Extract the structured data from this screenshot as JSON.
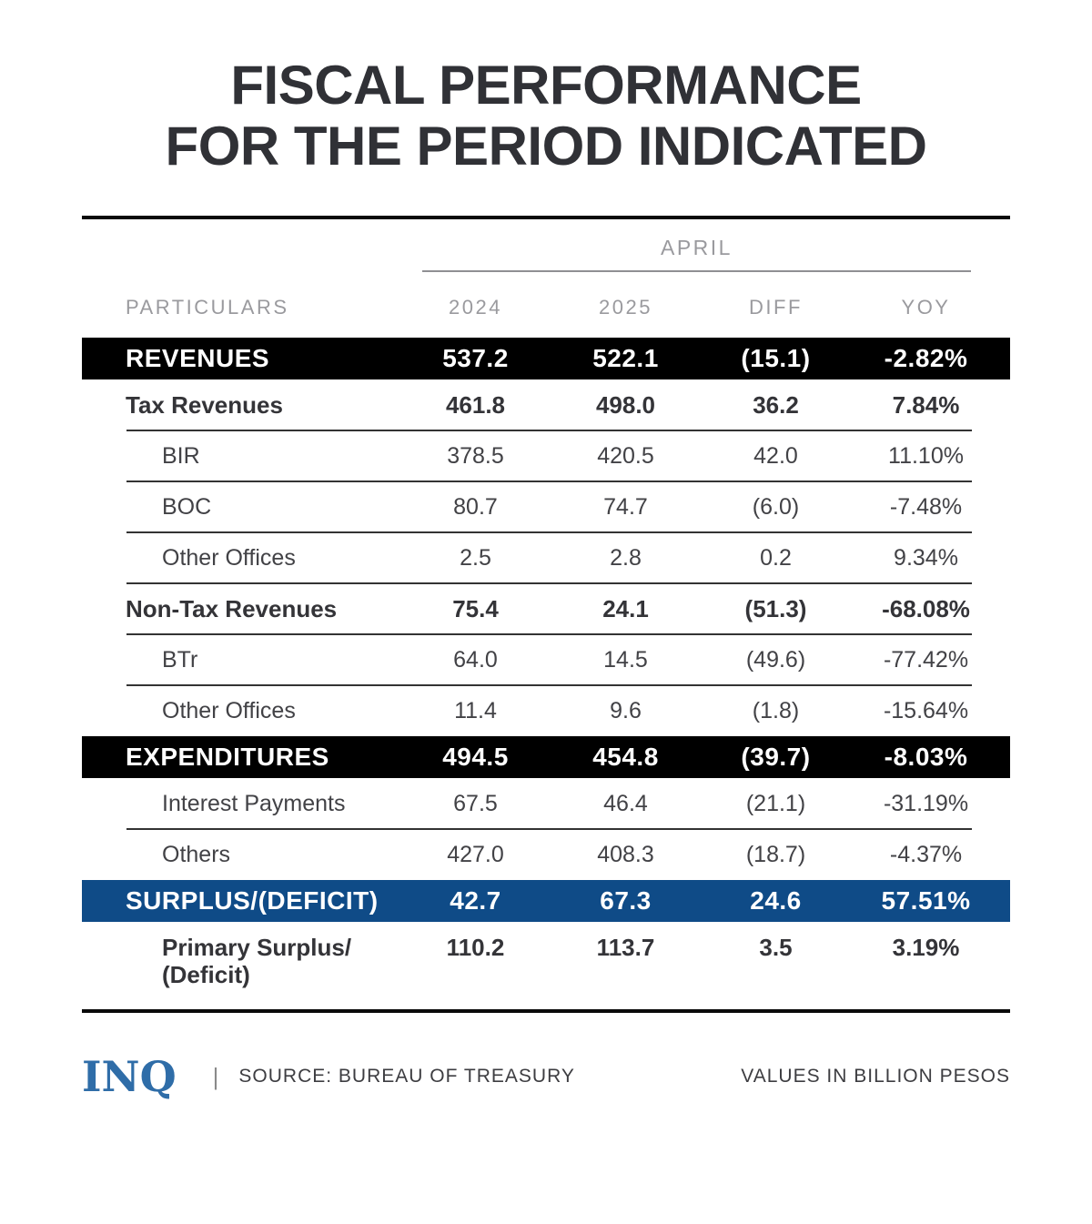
{
  "title": {
    "line1": "FISCAL PERFORMANCE",
    "line2": "FOR THE PERIOD INDICATED"
  },
  "header": {
    "period": "APRIL",
    "particulars": "PARTICULARS",
    "col_2024": "2024",
    "col_2025": "2025",
    "col_diff": "DIFF",
    "col_yoy": "YOY"
  },
  "rows": [
    {
      "name": "revenues",
      "label": "REVENUES",
      "values": [
        "537.2",
        "522.1",
        "(15.1)",
        "-2.82%"
      ],
      "style": "bar-black",
      "indent": 1,
      "divider": false
    },
    {
      "name": "tax-revenues",
      "label": "Tax Revenues",
      "values": [
        "461.8",
        "498.0",
        "36.2",
        "7.84%"
      ],
      "style": "bold",
      "indent": 1,
      "divider": true
    },
    {
      "name": "bir",
      "label": "BIR",
      "values": [
        "378.5",
        "420.5",
        "42.0",
        "11.10%"
      ],
      "style": "plain",
      "indent": 2,
      "divider": true
    },
    {
      "name": "boc",
      "label": "BOC",
      "values": [
        "80.7",
        "74.7",
        "(6.0)",
        "-7.48%"
      ],
      "style": "plain",
      "indent": 2,
      "divider": true
    },
    {
      "name": "other-offices-tax",
      "label": "Other Offices",
      "values": [
        "2.5",
        "2.8",
        "0.2",
        "9.34%"
      ],
      "style": "plain",
      "indent": 2,
      "divider": true
    },
    {
      "name": "non-tax-revenues",
      "label": "Non-Tax Revenues",
      "values": [
        "75.4",
        "24.1",
        "(51.3)",
        "-68.08%"
      ],
      "style": "bold",
      "indent": 1,
      "divider": true
    },
    {
      "name": "btr",
      "label": "BTr",
      "values": [
        "64.0",
        "14.5",
        "(49.6)",
        "-77.42%"
      ],
      "style": "plain",
      "indent": 2,
      "divider": true
    },
    {
      "name": "other-offices-nontax",
      "label": "Other Offices",
      "values": [
        "11.4",
        "9.6",
        "(1.8)",
        "-15.64%"
      ],
      "style": "plain",
      "indent": 2,
      "divider": false
    },
    {
      "name": "expenditures",
      "label": "EXPENDITURES",
      "values": [
        "494.5",
        "454.8",
        "(39.7)",
        "-8.03%"
      ],
      "style": "bar-black",
      "indent": 1,
      "divider": false
    },
    {
      "name": "interest-payments",
      "label": "Interest Payments",
      "values": [
        "67.5",
        "46.4",
        "(21.1)",
        "-31.19%"
      ],
      "style": "plain",
      "indent": 2,
      "divider": true
    },
    {
      "name": "others",
      "label": "Others",
      "values": [
        "427.0",
        "408.3",
        "(18.7)",
        "-4.37%"
      ],
      "style": "plain",
      "indent": 2,
      "divider": false
    },
    {
      "name": "surplus-deficit",
      "label": "SURPLUS/(DEFICIT)",
      "values": [
        "42.7",
        "67.3",
        "24.6",
        "57.51%"
      ],
      "style": "bar-blue",
      "indent": 1,
      "divider": false
    },
    {
      "name": "primary-surplus-deficit",
      "label": "Primary Surplus/",
      "label2": "(Deficit)",
      "values": [
        "110.2",
        "113.7",
        "3.5",
        "3.19%"
      ],
      "style": "bold tall",
      "indent": 2,
      "divider": false
    }
  ],
  "footer": {
    "logo": "INQ",
    "separator": "|",
    "source": "SOURCE: BUREAU OF TREASURY",
    "note": "VALUES IN BILLION PESOS"
  },
  "colors": {
    "bar_black": "#000000",
    "bar_blue": "#0f4b87",
    "logo_blue": "#2f6da8",
    "header_gray": "#9a9a9e",
    "text_plain": "#424246",
    "text_bold": "#343438",
    "title": "#303136",
    "divider": "#333333",
    "rule": "#0a0a0a"
  },
  "chart_data": {
    "type": "table",
    "title": "FISCAL PERFORMANCE FOR THE PERIOD INDICATED",
    "period": "APRIL",
    "unit": "billion pesos",
    "columns": [
      "PARTICULARS",
      "2024",
      "2025",
      "DIFF",
      "YOY"
    ],
    "rows": [
      [
        "REVENUES",
        537.2,
        522.1,
        -15.1,
        "-2.82%"
      ],
      [
        "Tax Revenues",
        461.8,
        498.0,
        36.2,
        "7.84%"
      ],
      [
        "BIR",
        378.5,
        420.5,
        42.0,
        "11.10%"
      ],
      [
        "BOC",
        80.7,
        74.7,
        -6.0,
        "-7.48%"
      ],
      [
        "Other Offices",
        2.5,
        2.8,
        0.2,
        "9.34%"
      ],
      [
        "Non-Tax Revenues",
        75.4,
        24.1,
        -51.3,
        "-68.08%"
      ],
      [
        "BTr",
        64.0,
        14.5,
        -49.6,
        "-77.42%"
      ],
      [
        "Other Offices",
        11.4,
        9.6,
        -1.8,
        "-15.64%"
      ],
      [
        "EXPENDITURES",
        494.5,
        454.8,
        -39.7,
        "-8.03%"
      ],
      [
        "Interest Payments",
        67.5,
        46.4,
        -21.1,
        "-31.19%"
      ],
      [
        "Others",
        427.0,
        408.3,
        -18.7,
        "-4.37%"
      ],
      [
        "SURPLUS/(DEFICIT)",
        42.7,
        67.3,
        24.6,
        "57.51%"
      ],
      [
        "Primary Surplus/(Deficit)",
        110.2,
        113.7,
        3.5,
        "3.19%"
      ]
    ]
  }
}
